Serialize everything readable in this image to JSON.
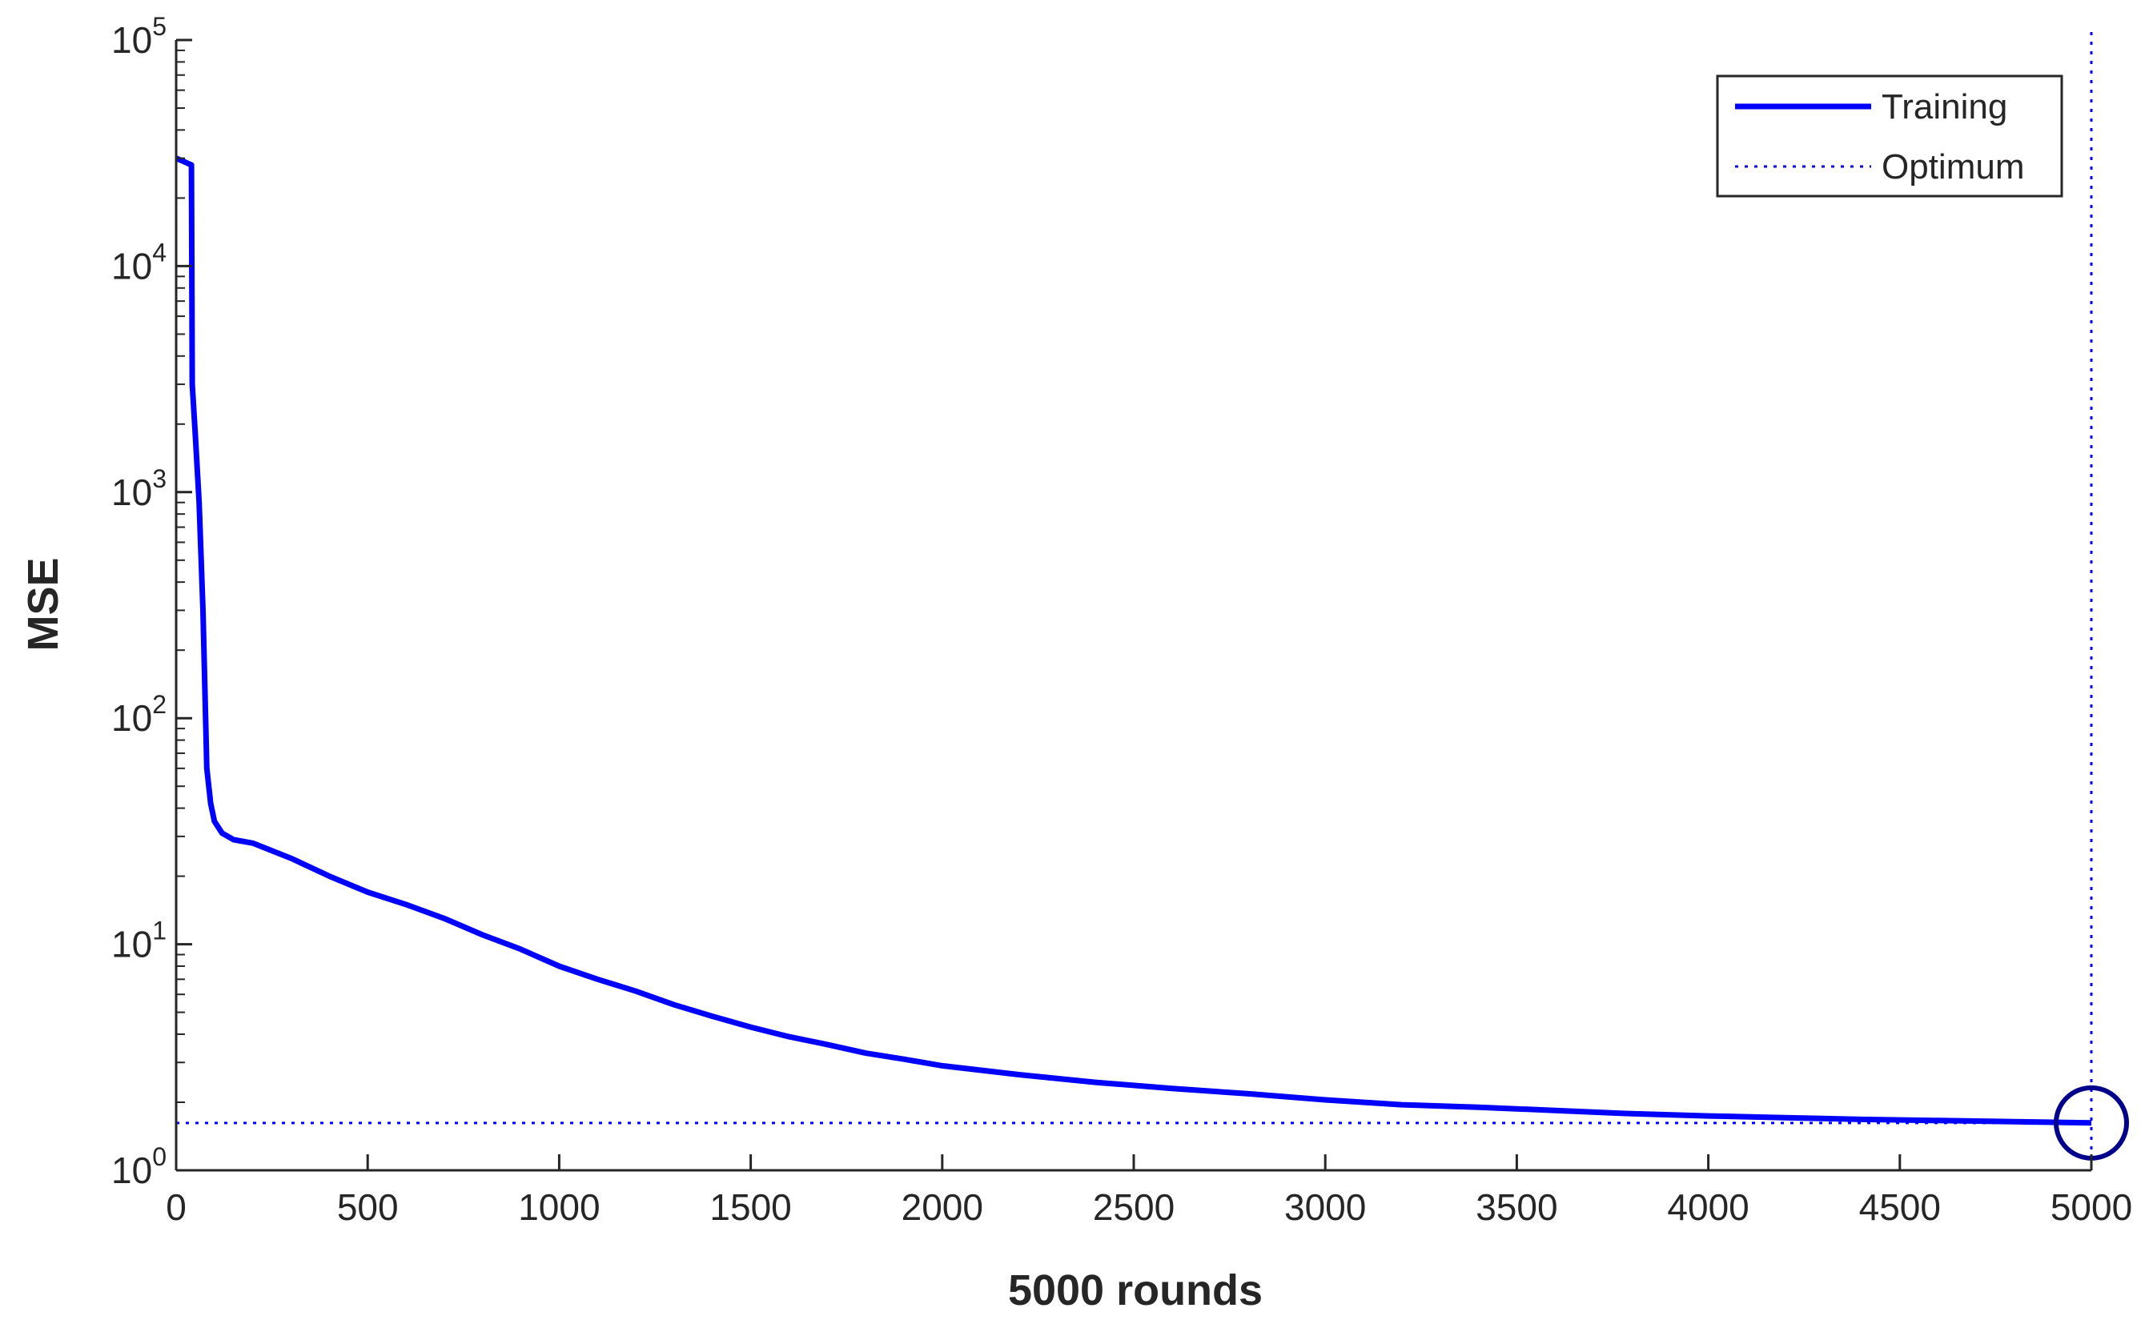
{
  "chart_data": {
    "type": "line",
    "xlabel": "5000 rounds",
    "ylabel": "MSE",
    "xlim": [
      0,
      5000
    ],
    "ylim": [
      1,
      100000
    ],
    "yscale": "log",
    "xticks": [
      0,
      500,
      1000,
      1500,
      2000,
      2500,
      3000,
      3500,
      4000,
      4500,
      5000
    ],
    "yticks": [
      {
        "base": "10",
        "exp": "0",
        "value": 1
      },
      {
        "base": "10",
        "exp": "1",
        "value": 10
      },
      {
        "base": "10",
        "exp": "2",
        "value": 100
      },
      {
        "base": "10",
        "exp": "3",
        "value": 1000
      },
      {
        "base": "10",
        "exp": "4",
        "value": 10000
      },
      {
        "base": "10",
        "exp": "5",
        "value": 100000
      }
    ],
    "grid": false,
    "legend_position": "top-right",
    "legend": [
      "Training",
      "Optimum"
    ],
    "series": [
      {
        "name": "Training",
        "color": "#0000ff",
        "style": "solid",
        "x": [
          0,
          20,
          40,
          42,
          50,
          60,
          70,
          80,
          90,
          100,
          120,
          150,
          200,
          300,
          400,
          500,
          600,
          700,
          800,
          900,
          1000,
          1100,
          1200,
          1300,
          1400,
          1500,
          1600,
          1700,
          1800,
          1900,
          2000,
          2200,
          2400,
          2600,
          2800,
          3000,
          3200,
          3400,
          3600,
          3800,
          4000,
          4200,
          4400,
          4600,
          4800,
          5000
        ],
        "y": [
          30000,
          29000,
          28000,
          3000,
          1800,
          900,
          300,
          60,
          42,
          35,
          31,
          29,
          28,
          24,
          20,
          17,
          15,
          13,
          11,
          9.5,
          8.0,
          7.0,
          6.2,
          5.4,
          4.8,
          4.3,
          3.9,
          3.6,
          3.3,
          3.1,
          2.9,
          2.65,
          2.45,
          2.3,
          2.18,
          2.05,
          1.95,
          1.9,
          1.84,
          1.78,
          1.74,
          1.71,
          1.68,
          1.66,
          1.64,
          1.62
        ]
      }
    ],
    "optimum": {
      "name": "Optimum",
      "color": "#0000ff",
      "style": "dotted",
      "x": 5000,
      "y": 1.62
    }
  }
}
